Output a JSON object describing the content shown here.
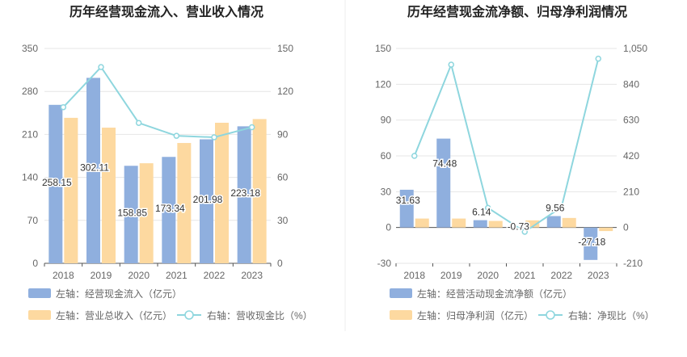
{
  "colors": {
    "bar_primary": "#8FAFDE",
    "bar_secondary": "#FDD9A0",
    "line": "#8ED6DE",
    "grid": "#E6E6E6",
    "tick_text": "#666666",
    "title_text": "#222222",
    "divider": "#EEEEEE"
  },
  "chart_data": [
    {
      "type": "bar",
      "title": "历年经营现金流入、营业收入情况",
      "categories": [
        "2018",
        "2019",
        "2020",
        "2021",
        "2022",
        "2023"
      ],
      "left_axis": {
        "min": 0,
        "max": 350,
        "ticks": [
          "0",
          "70",
          "140",
          "210",
          "280",
          "350"
        ]
      },
      "right_axis": {
        "min": 0,
        "max": 150,
        "ticks": [
          "0",
          "30",
          "60",
          "90",
          "120",
          "150"
        ]
      },
      "series": [
        {
          "name": "左轴：经营现金流入（亿元）",
          "axis": "left",
          "kind": "bar",
          "values": [
            258.15,
            302.11,
            158.85,
            173.34,
            201.98,
            223.18
          ],
          "labels": [
            "258.15",
            "302.11",
            "158.85",
            "173.34",
            "201.98",
            "223.18"
          ]
        },
        {
          "name": "左轴：营业总收入（亿元）",
          "axis": "left",
          "kind": "bar",
          "values": [
            237,
            221,
            163,
            196,
            229,
            235
          ]
        },
        {
          "name": "右轴：营收现金比（%）",
          "axis": "right",
          "kind": "line",
          "values": [
            109,
            137,
            98,
            89,
            88,
            95
          ]
        }
      ],
      "legend": [
        "左轴：经营现金流入（亿元）",
        "左轴：营业总收入（亿元）",
        "右轴：营收现金比（%）"
      ]
    },
    {
      "type": "bar",
      "title": "历年经营现金流净额、归母净利润情况",
      "categories": [
        "2018",
        "2019",
        "2020",
        "2021",
        "2022",
        "2023"
      ],
      "left_axis": {
        "min": -30,
        "max": 150,
        "ticks": [
          "-30",
          "0",
          "30",
          "60",
          "90",
          "120",
          "150"
        ]
      },
      "right_axis": {
        "min": -210,
        "max": 1050,
        "ticks": [
          "-210",
          "0",
          "210",
          "420",
          "630",
          "840",
          "1,050"
        ]
      },
      "series": [
        {
          "name": "左轴：经营活动现金流净额（亿元）",
          "axis": "left",
          "kind": "bar",
          "values": [
            31.63,
            74.48,
            6.14,
            -0.73,
            9.56,
            -27.18
          ],
          "labels": [
            "31.63",
            "74.48",
            "6.14",
            "-0.73",
            "9.56",
            "-27.18"
          ]
        },
        {
          "name": "左轴：归母净利润（亿元）",
          "axis": "left",
          "kind": "bar",
          "values": [
            7.5,
            7.5,
            5.5,
            6.0,
            8.0,
            -3.0
          ]
        },
        {
          "name": "右轴：净现比（%）",
          "axis": "right",
          "kind": "line",
          "values": [
            420,
            955,
            115,
            -25,
            120,
            990
          ]
        }
      ],
      "legend": [
        "左轴：经营活动现金流净额（亿元）",
        "左轴：归母净利润（亿元）",
        "右轴：净现比（%）"
      ]
    }
  ]
}
